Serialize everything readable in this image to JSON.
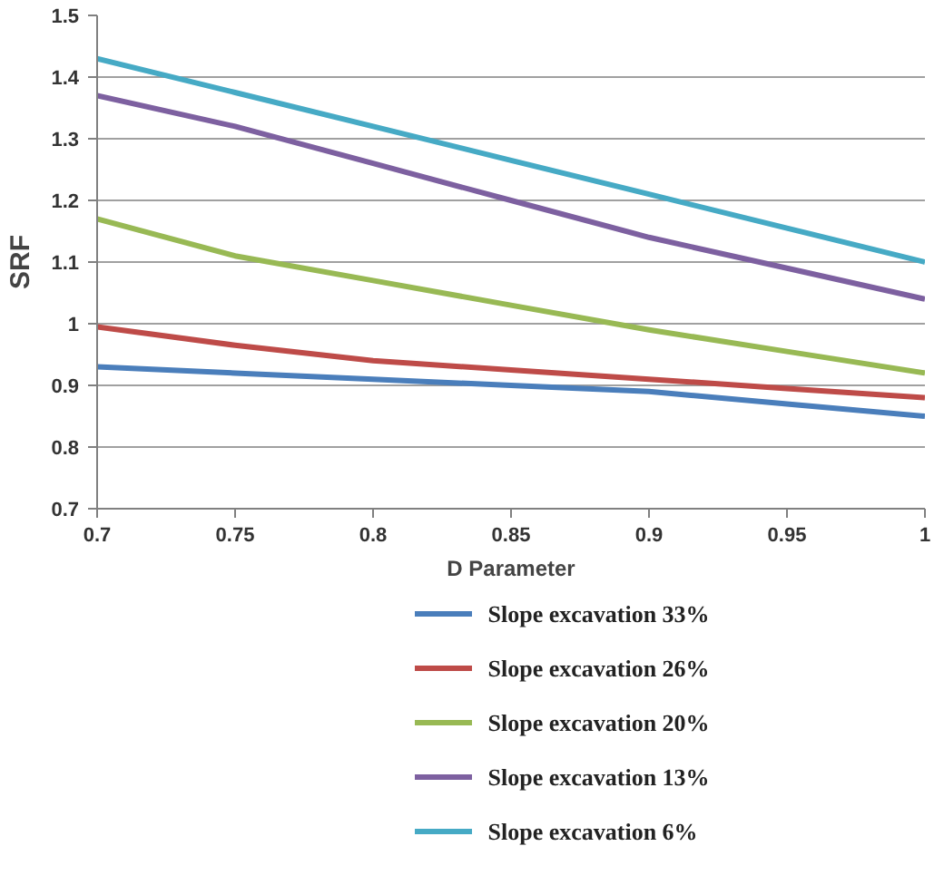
{
  "chart_data": {
    "type": "line",
    "xlabel": "D Parameter",
    "ylabel": "SRF",
    "x": [
      0.7,
      0.75,
      0.8,
      0.85,
      0.9,
      0.95,
      1
    ],
    "series": [
      {
        "name": "Slope excavation   33%",
        "color": "#4a7ebb",
        "values": [
          0.93,
          0.92,
          0.91,
          0.9,
          0.89,
          0.87,
          0.85
        ]
      },
      {
        "name": "Slope excavation   26%",
        "color": "#be4b48",
        "values": [
          0.995,
          0.965,
          0.94,
          0.925,
          0.91,
          0.895,
          0.88
        ]
      },
      {
        "name": "Slope excavation   20%",
        "color": "#98b954",
        "values": [
          1.17,
          1.11,
          1.07,
          1.03,
          0.99,
          0.955,
          0.92
        ]
      },
      {
        "name": "Slope excavation   13%",
        "color": "#7d60a0",
        "values": [
          1.37,
          1.32,
          1.26,
          1.2,
          1.14,
          1.09,
          1.04
        ]
      },
      {
        "name": "Slope excavation   6%",
        "color": "#46aac5",
        "values": [
          1.43,
          1.375,
          1.32,
          1.265,
          1.21,
          1.155,
          1.1
        ]
      }
    ],
    "xlim": [
      0.7,
      1
    ],
    "xticks": [
      0.7,
      0.75,
      0.8,
      0.85,
      0.9,
      0.95,
      1
    ],
    "ylim": [
      0.7,
      1.5
    ],
    "yticks": [
      0.7,
      0.8,
      0.9,
      1,
      1.1,
      1.2,
      1.3,
      1.4,
      1.5
    ],
    "grid": "y",
    "legend": "bottom",
    "line_style": "solid"
  }
}
